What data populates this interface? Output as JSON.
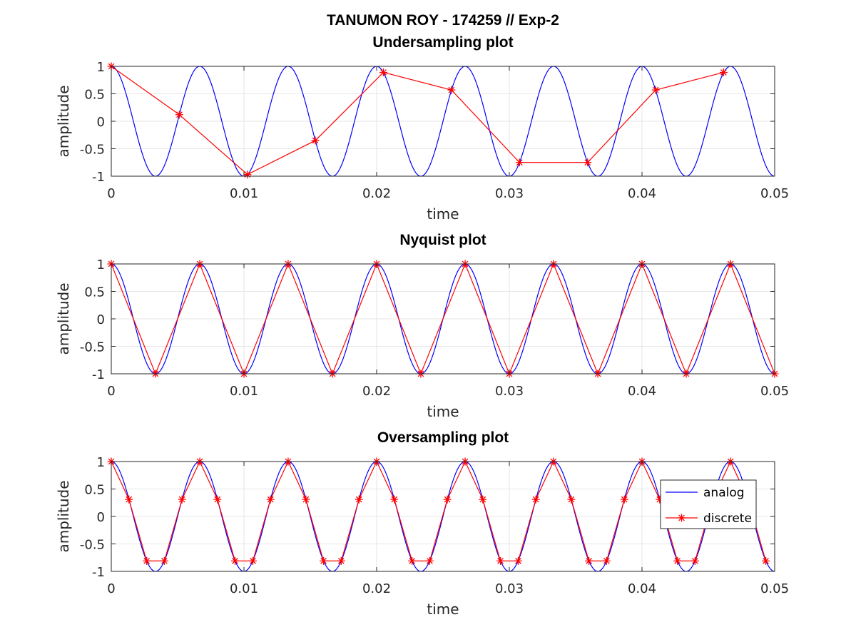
{
  "figure_title": "TANUMON ROY - 174259 // Exp-2",
  "colors": {
    "analog": "#0000ff",
    "discrete": "#ff0000",
    "grid": "#e6e6e6",
    "axes": "#262626"
  },
  "legend": {
    "entries": [
      "analog",
      "discrete"
    ],
    "placement": "right, inside bottom panel"
  },
  "chart_data": [
    {
      "type": "line",
      "title": "Undersampling plot",
      "xlabel": "time",
      "ylabel": "amplitude",
      "xlim": [
        0,
        0.05
      ],
      "ylim": [
        -1,
        1
      ],
      "xticks": [
        "0",
        "0.01",
        "0.02",
        "0.03",
        "0.04",
        "0.05"
      ],
      "yticks": [
        "1",
        "0.5",
        "0",
        "-0.5",
        "-1"
      ],
      "grid": true,
      "analog": {
        "function": "cos(2*pi*150*t)",
        "frequency_hz": 150,
        "t_range": [
          0,
          0.05
        ]
      },
      "discrete": {
        "marker": "*",
        "x": [
          0,
          0.00513,
          0.01026,
          0.01538,
          0.02051,
          0.02564,
          0.03077,
          0.0359,
          0.04103,
          0.04615
        ],
        "y": [
          1,
          0.12,
          -0.97,
          -0.35,
          0.89,
          0.57,
          -0.75,
          -0.75,
          0.57,
          0.89
        ]
      }
    },
    {
      "type": "line",
      "title": "Nyquist plot",
      "xlabel": "time",
      "ylabel": "amplitude",
      "xlim": [
        0,
        0.05
      ],
      "ylim": [
        -1,
        1
      ],
      "xticks": [
        "0",
        "0.01",
        "0.02",
        "0.03",
        "0.04",
        "0.05"
      ],
      "yticks": [
        "1",
        "0.5",
        "0",
        "-0.5",
        "-1"
      ],
      "grid": true,
      "analog": {
        "function": "cos(2*pi*150*t)",
        "frequency_hz": 150,
        "t_range": [
          0,
          0.05
        ]
      },
      "discrete": {
        "marker": "*",
        "x": [
          0,
          0.00333,
          0.00667,
          0.01,
          0.01333,
          0.01667,
          0.02,
          0.02333,
          0.02667,
          0.03,
          0.03333,
          0.03667,
          0.04,
          0.04333,
          0.04667,
          0.05
        ],
        "y": [
          1,
          -1,
          1,
          -1,
          1,
          -1,
          1,
          -1,
          1,
          -1,
          1,
          -1,
          1,
          -1,
          1,
          -1
        ]
      }
    },
    {
      "type": "line",
      "title": "Oversampling plot",
      "xlabel": "time",
      "ylabel": "amplitude",
      "xlim": [
        0,
        0.05
      ],
      "ylim": [
        -1,
        1
      ],
      "xticks": [
        "0",
        "0.01",
        "0.02",
        "0.03",
        "0.04",
        "0.05"
      ],
      "yticks": [
        "1",
        "0.5",
        "0",
        "-0.5",
        "-1"
      ],
      "grid": true,
      "show_legend": true,
      "analog": {
        "function": "cos(2*pi*150*t)",
        "frequency_hz": 150,
        "t_range": [
          0,
          0.05
        ]
      },
      "discrete": {
        "marker": "*",
        "x": [
          0,
          0.00133,
          0.00267,
          0.004,
          0.00533,
          0.00667,
          0.008,
          0.00933,
          0.01067,
          0.012,
          0.01333,
          0.01467,
          0.016,
          0.01733,
          0.01867,
          0.02,
          0.02133,
          0.02267,
          0.024,
          0.02533,
          0.02667,
          0.028,
          0.02933,
          0.03067,
          0.032,
          0.03333,
          0.03467,
          0.036,
          0.03733,
          0.03867,
          0.04,
          0.04133,
          0.04267,
          0.044,
          0.04533,
          0.04667,
          0.048,
          0.04933
        ],
        "y": [
          1,
          0.31,
          -0.81,
          -0.81,
          0.31,
          1,
          0.31,
          -0.81,
          -0.81,
          0.31,
          1,
          0.31,
          -0.81,
          -0.81,
          0.31,
          1,
          0.31,
          -0.81,
          -0.81,
          0.31,
          1,
          0.31,
          -0.81,
          -0.81,
          0.31,
          1,
          0.31,
          -0.81,
          -0.81,
          0.31,
          1,
          0.31,
          -0.81,
          -0.81,
          0.31,
          1,
          0.31,
          -0.81
        ]
      }
    }
  ]
}
